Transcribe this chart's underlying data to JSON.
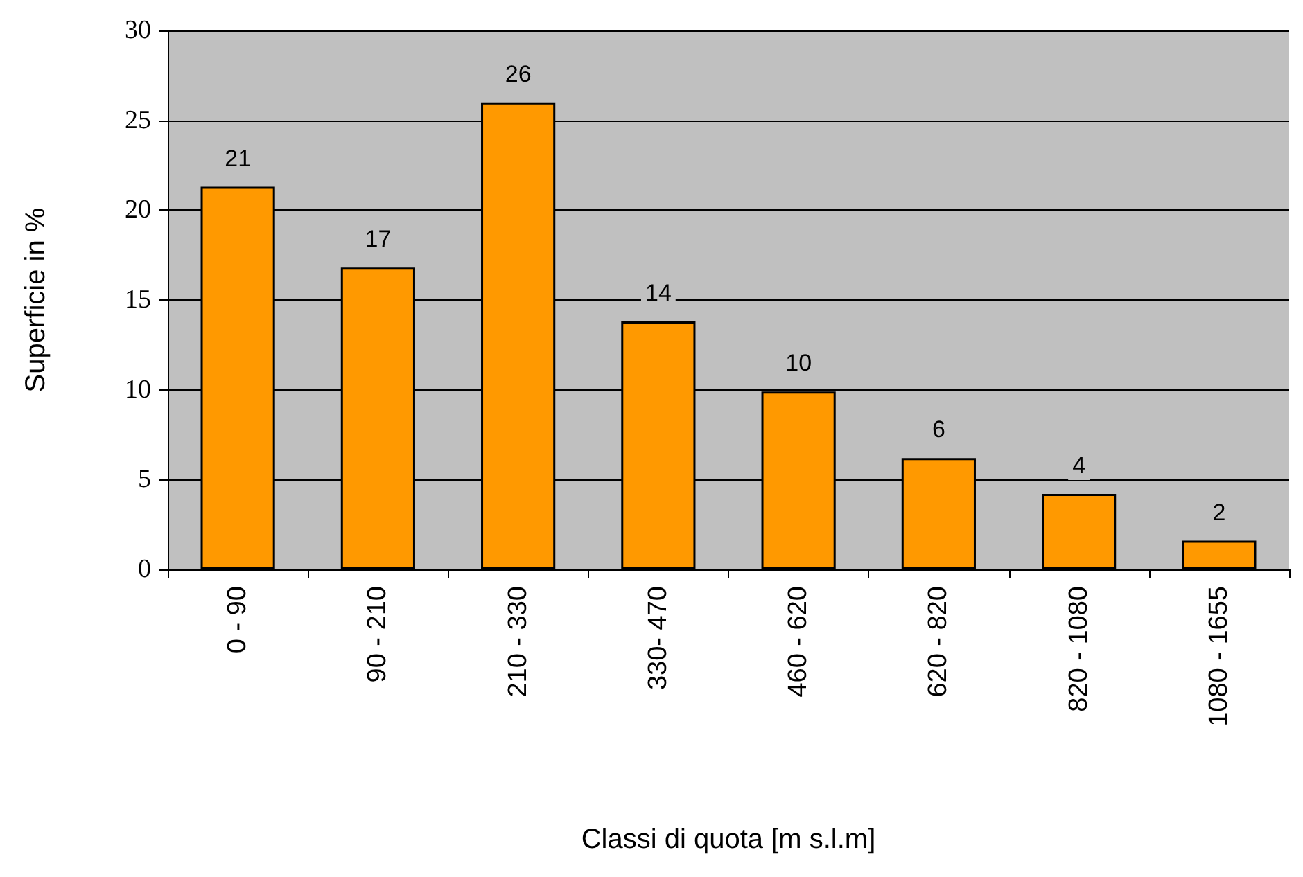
{
  "chart_data": {
    "type": "bar",
    "xlabel": "Classi di quota [m s.l.m]",
    "ylabel": "Superficie in %",
    "categories": [
      "0 - 90",
      "90 - 210",
      "210 - 330",
      "330- 470",
      "460 - 620",
      "620 - 820",
      "820 - 1080",
      "1080 - 1655"
    ],
    "values": [
      21.3,
      16.8,
      26,
      13.8,
      9.9,
      6.2,
      4.2,
      1.6
    ],
    "value_labels": [
      "21",
      "17",
      "26",
      "14",
      "10",
      "6",
      "4",
      "2"
    ],
    "color": "#ff9900",
    "ylim": [
      0,
      30
    ],
    "yticks": [
      0,
      5,
      10,
      15,
      20,
      25,
      30
    ],
    "grid": "y"
  }
}
